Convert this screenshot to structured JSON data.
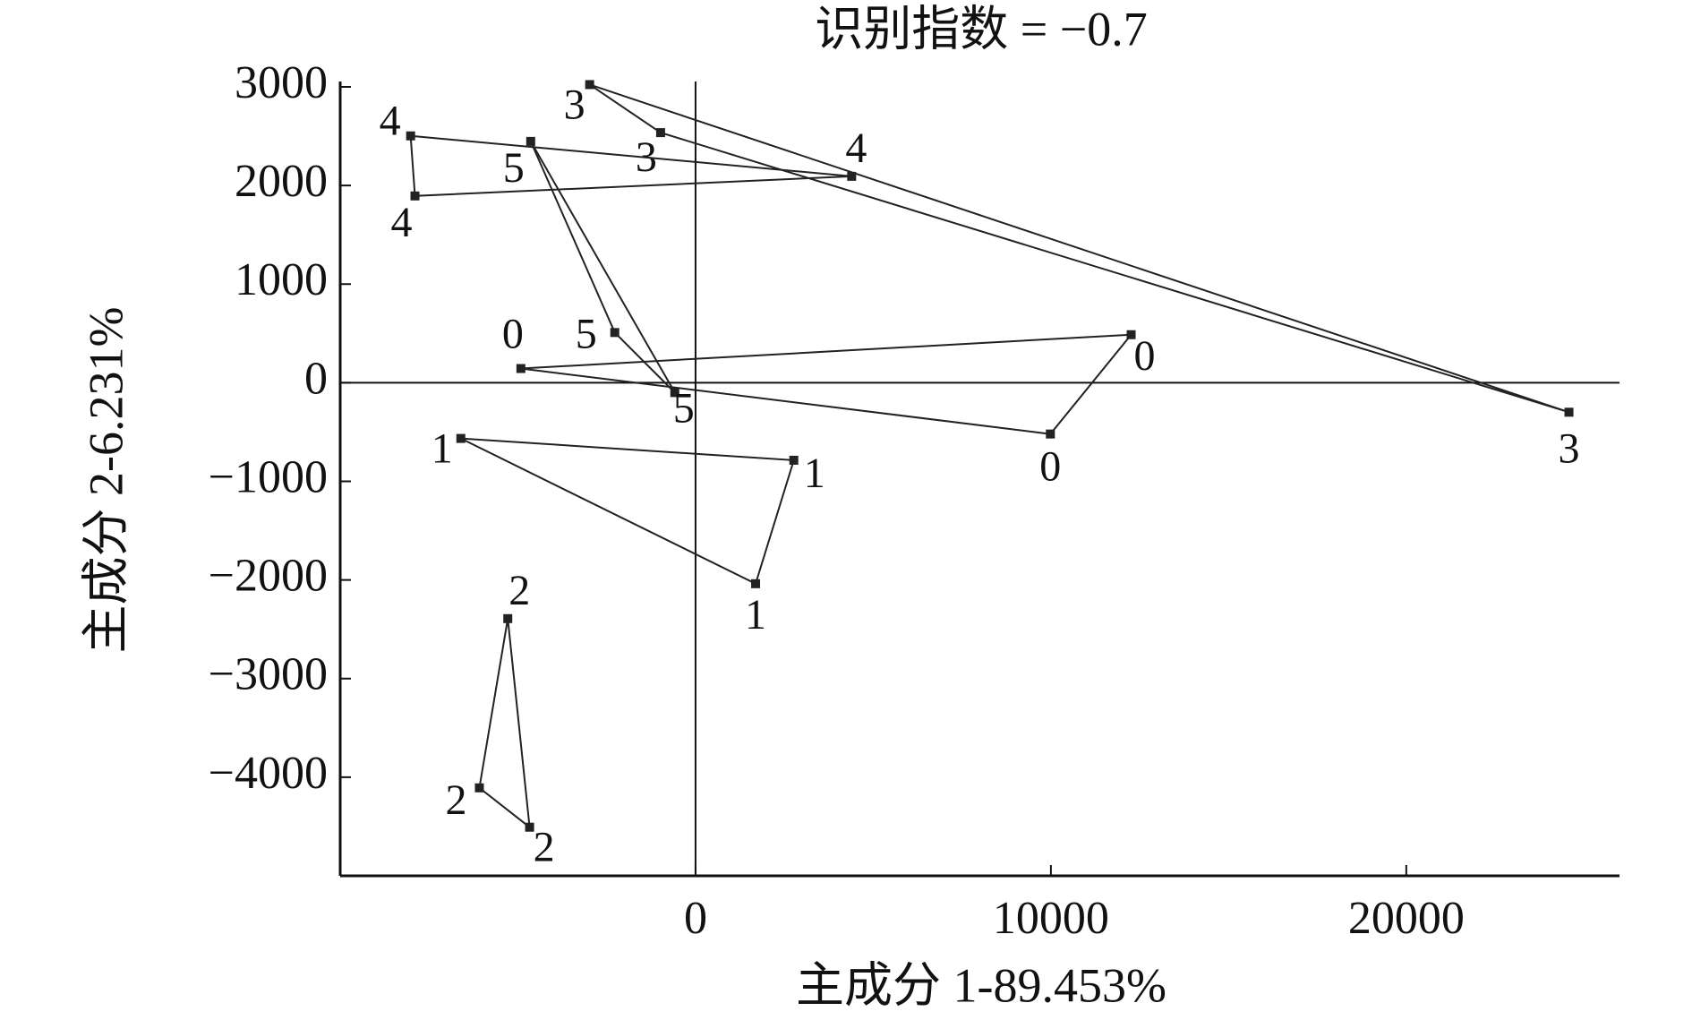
{
  "chart_data": {
    "type": "scatter",
    "title": "识别指数 = −0.7",
    "x_label": "主成分 1-89.453%",
    "y_label": "主成分 2-6.231%",
    "xlim": [
      -10000,
      26000
    ],
    "ylim": [
      -5000,
      3000
    ],
    "xticks": [
      0,
      10000,
      20000
    ],
    "yticks": [
      3000,
      2000,
      1000,
      0,
      {
        "value": -1000,
        "label": "−1000"
      },
      {
        "value": -2000,
        "label": "−2000"
      },
      {
        "value": -3000,
        "label": "−3000"
      },
      {
        "value": -4000,
        "label": "−4000"
      }
    ],
    "color": "#222222",
    "series": [
      {
        "name": "0",
        "x": [
          -4915,
          12258,
          9985
        ],
        "values": [
          144,
          487,
          -520
        ]
      },
      {
        "name": "1",
        "x": [
          -6605,
          2765,
          1690
        ],
        "values": [
          -565,
          -786,
          -2038
        ]
      },
      {
        "name": "2",
        "x": [
          -5284,
          -6083,
          -4670
        ],
        "values": [
          -2392,
          -4108,
          -4507
        ]
      },
      {
        "name": "3",
        "x": [
          -2980,
          -983,
          24578
        ],
        "values": [
          3023,
          2536,
          -299
        ]
      },
      {
        "name": "4",
        "x": [
          -8018,
          -7896,
          4393
        ],
        "values": [
          2503,
          1894,
          2093
        ]
      },
      {
        "name": "5",
        "x": [
          -4639,
          -2273,
          -584
        ],
        "values": [
          2447,
          509,
          -100
        ]
      }
    ]
  }
}
